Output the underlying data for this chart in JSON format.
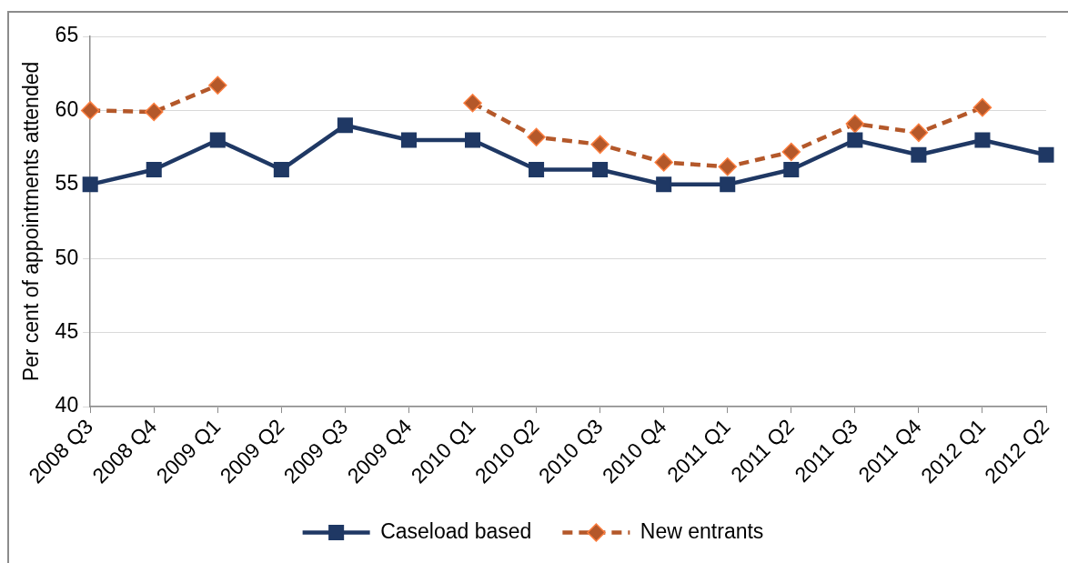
{
  "chart_data": {
    "type": "line",
    "ylabel": "Per cent of appointments attended",
    "categories": [
      "2008 Q3",
      "2008 Q4",
      "2009 Q1",
      "2009 Q2",
      "2009 Q3",
      "2009 Q4",
      "2010 Q1",
      "2010 Q2",
      "2010 Q3",
      "2010 Q4",
      "2011 Q1",
      "2011 Q2",
      "2011 Q3",
      "2011 Q4",
      "2012 Q1",
      "2012 Q2"
    ],
    "ylim": [
      40,
      65
    ],
    "yticks": [
      40,
      45,
      50,
      55,
      60,
      65
    ],
    "grid": "y",
    "legend": "bottom",
    "series": [
      {
        "name": "Caseload based",
        "color": "#1f3864",
        "marker": "square",
        "line_style": "solid",
        "values": [
          55,
          56,
          58,
          56,
          59,
          58,
          58,
          56,
          56,
          55,
          55,
          56,
          58,
          57,
          58,
          57
        ]
      },
      {
        "name": "New entrants",
        "color": "#b4582a",
        "marker": "diamond",
        "line_style": "dashed",
        "values": [
          60,
          59.9,
          61.7,
          null,
          null,
          null,
          60.5,
          58.2,
          57.7,
          56.5,
          56.2,
          57.2,
          59.1,
          58.5,
          60.2,
          null
        ]
      }
    ]
  }
}
